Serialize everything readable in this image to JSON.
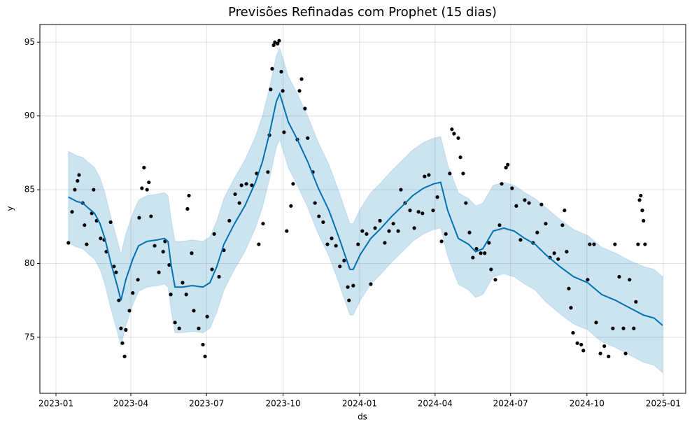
{
  "chart_data": {
    "type": "line",
    "title": "Previsões Refinadas com Prophet (15 dias)",
    "xlabel": "ds",
    "ylabel": "y",
    "grid": true,
    "xlim": [
      2022.947,
      2025.074
    ],
    "ylim": [
      71.2,
      96.2
    ],
    "xticks": [
      {
        "value": 2023.0,
        "label": "2023-01"
      },
      {
        "value": 2023.2466,
        "label": "2023-04"
      },
      {
        "value": 2023.4959,
        "label": "2023-07"
      },
      {
        "value": 2023.7479,
        "label": "2023-10"
      },
      {
        "value": 2024.0,
        "label": "2024-01"
      },
      {
        "value": 2024.2486,
        "label": "2024-04"
      },
      {
        "value": 2024.4973,
        "label": "2024-07"
      },
      {
        "value": 2024.7486,
        "label": "2024-10"
      },
      {
        "value": 2025.0,
        "label": "2025-01"
      }
    ],
    "yticks": [
      75,
      80,
      85,
      90,
      95
    ],
    "forecast": {
      "color": "#0072b2",
      "band_color": "#0072b2",
      "x": [
        2023.041,
        2023.069,
        2023.088,
        2023.104,
        2023.127,
        2023.145,
        2023.161,
        2023.18,
        2023.203,
        2023.214,
        2023.23,
        2023.253,
        2023.272,
        2023.3,
        2023.334,
        2023.357,
        2023.369,
        2023.38,
        2023.392,
        2023.415,
        2023.449,
        2023.484,
        2023.507,
        2023.53,
        2023.553,
        2023.588,
        2023.622,
        2023.657,
        2023.68,
        2023.703,
        2023.726,
        2023.737,
        2023.749,
        2023.765,
        2023.795,
        2023.829,
        2023.864,
        2023.899,
        2023.933,
        2023.968,
        2023.979,
        2024.002,
        2024.037,
        2024.071,
        2024.106,
        2024.141,
        2024.175,
        2024.21,
        2024.244,
        2024.267,
        2024.29,
        2024.325,
        2024.359,
        2024.382,
        2024.406,
        2024.44,
        2024.475,
        2024.509,
        2024.544,
        2024.578,
        2024.613,
        2024.659,
        2024.705,
        2024.751,
        2024.797,
        2024.843,
        2024.889,
        2024.935,
        2024.97,
        2024.998
      ],
      "values": [
        84.5,
        84.2,
        84.1,
        83.8,
        83.4,
        82.7,
        81.7,
        80.1,
        78.4,
        77.5,
        78.9,
        80.3,
        81.2,
        81.5,
        81.6,
        81.7,
        81.5,
        79.8,
        78.4,
        78.4,
        78.5,
        78.4,
        78.7,
        79.8,
        81.3,
        82.7,
        83.9,
        85.5,
        86.9,
        88.8,
        91.0,
        91.5,
        90.7,
        89.6,
        88.4,
        86.9,
        85.1,
        83.6,
        81.7,
        79.6,
        79.6,
        80.6,
        81.7,
        82.4,
        83.2,
        83.9,
        84.6,
        85.1,
        85.4,
        85.5,
        83.6,
        81.7,
        81.3,
        80.8,
        81.0,
        82.2,
        82.4,
        82.2,
        81.7,
        81.3,
        80.6,
        79.8,
        79.1,
        78.7,
        77.9,
        77.5,
        77.0,
        76.5,
        76.3,
        75.8
      ],
      "upper": [
        87.6,
        87.3,
        87.2,
        86.9,
        86.5,
        85.8,
        84.8,
        83.2,
        81.5,
        80.6,
        82.0,
        83.4,
        84.3,
        84.6,
        84.7,
        84.8,
        84.6,
        82.9,
        81.5,
        81.5,
        81.6,
        81.5,
        81.8,
        82.9,
        84.4,
        85.8,
        87.0,
        88.6,
        90.0,
        91.9,
        94.1,
        94.6,
        93.8,
        92.7,
        91.5,
        90.0,
        88.2,
        86.7,
        84.8,
        82.7,
        82.7,
        83.7,
        84.8,
        85.5,
        86.3,
        87.0,
        87.7,
        88.2,
        88.5,
        88.6,
        86.7,
        84.8,
        84.4,
        83.9,
        84.1,
        85.3,
        85.5,
        85.3,
        84.8,
        84.4,
        83.8,
        83.0,
        82.3,
        81.9,
        81.1,
        80.7,
        80.2,
        79.8,
        79.6,
        79.1
      ],
      "lower": [
        81.4,
        81.1,
        81.0,
        80.7,
        80.3,
        79.6,
        78.6,
        77.0,
        75.3,
        74.4,
        75.8,
        77.2,
        78.1,
        78.4,
        78.5,
        78.6,
        78.4,
        76.7,
        75.3,
        75.3,
        75.4,
        75.3,
        75.6,
        76.7,
        78.2,
        79.6,
        80.8,
        82.4,
        83.8,
        85.7,
        87.9,
        88.4,
        87.6,
        86.5,
        85.3,
        83.8,
        82.0,
        80.5,
        78.6,
        76.5,
        76.5,
        77.5,
        78.6,
        79.3,
        80.1,
        80.8,
        81.5,
        82.0,
        82.3,
        82.4,
        80.5,
        78.6,
        78.2,
        77.7,
        77.9,
        79.1,
        79.3,
        79.1,
        78.6,
        78.2,
        77.4,
        76.6,
        75.9,
        75.5,
        74.7,
        74.3,
        73.8,
        73.3,
        73.1,
        72.6
      ]
    },
    "observed": {
      "color": "#000000",
      "x": [
        2023.041,
        2023.053,
        2023.062,
        2023.071,
        2023.076,
        2023.088,
        2023.094,
        2023.101,
        2023.118,
        2023.124,
        2023.134,
        2023.147,
        2023.159,
        2023.166,
        2023.18,
        2023.191,
        2023.198,
        2023.207,
        2023.214,
        2023.219,
        2023.226,
        2023.23,
        2023.242,
        2023.253,
        2023.27,
        2023.274,
        2023.283,
        2023.29,
        2023.3,
        2023.306,
        2023.313,
        2023.325,
        2023.339,
        2023.353,
        2023.359,
        2023.373,
        2023.378,
        2023.392,
        2023.406,
        2023.417,
        2023.429,
        2023.433,
        2023.438,
        2023.447,
        2023.454,
        2023.47,
        2023.484,
        2023.491,
        2023.498,
        2023.514,
        2023.521,
        2023.537,
        2023.553,
        2023.571,
        2023.59,
        2023.604,
        2023.611,
        2023.627,
        2023.645,
        2023.661,
        2023.668,
        2023.682,
        2023.698,
        2023.703,
        2023.707,
        2023.712,
        2023.717,
        2023.721,
        2023.73,
        2023.735,
        2023.742,
        2023.747,
        2023.751,
        2023.76,
        2023.774,
        2023.781,
        2023.795,
        2023.802,
        2023.809,
        2023.82,
        2023.829,
        2023.846,
        2023.853,
        2023.866,
        2023.88,
        2023.894,
        2023.908,
        2023.922,
        2023.935,
        2023.949,
        2023.961,
        2023.965,
        2023.979,
        2023.995,
        2024.009,
        2024.023,
        2024.037,
        2024.051,
        2024.067,
        2024.083,
        2024.097,
        2024.111,
        2024.127,
        2024.136,
        2024.15,
        2024.166,
        2024.18,
        2024.194,
        2024.207,
        2024.214,
        2024.228,
        2024.242,
        2024.256,
        2024.27,
        2024.284,
        2024.297,
        2024.304,
        2024.311,
        2024.325,
        2024.332,
        2024.341,
        2024.35,
        2024.362,
        2024.373,
        2024.385,
        2024.399,
        2024.412,
        2024.426,
        2024.433,
        2024.447,
        2024.461,
        2024.468,
        2024.482,
        2024.488,
        2024.502,
        2024.516,
        2024.53,
        2024.544,
        2024.558,
        2024.571,
        2024.585,
        2024.599,
        2024.613,
        2024.627,
        2024.641,
        2024.654,
        2024.668,
        2024.675,
        2024.682,
        2024.689,
        2024.696,
        2024.703,
        2024.717,
        2024.73,
        2024.737,
        2024.751,
        2024.758,
        2024.772,
        2024.779,
        2024.793,
        2024.806,
        2024.82,
        2024.834,
        2024.841,
        2024.855,
        2024.869,
        2024.876,
        2024.889,
        2024.903,
        2024.91,
        2024.917,
        2024.922,
        2024.926,
        2024.931,
        2024.935,
        2024.94
      ],
      "values": [
        81.4,
        83.5,
        85.0,
        85.6,
        86.0,
        84.1,
        82.6,
        81.3,
        83.4,
        85.0,
        82.9,
        81.7,
        81.6,
        80.8,
        82.8,
        79.8,
        79.4,
        77.5,
        75.6,
        74.6,
        73.7,
        75.5,
        76.8,
        78.0,
        78.9,
        83.1,
        85.1,
        86.5,
        85.0,
        85.5,
        83.2,
        81.2,
        79.4,
        80.8,
        81.5,
        79.9,
        77.9,
        76.0,
        75.6,
        78.7,
        77.9,
        83.7,
        84.6,
        80.7,
        76.8,
        75.6,
        74.5,
        73.7,
        76.4,
        79.6,
        82.0,
        79.1,
        80.9,
        82.9,
        84.7,
        84.1,
        85.3,
        85.4,
        85.3,
        86.1,
        81.3,
        82.7,
        86.2,
        88.7,
        91.8,
        93.2,
        94.8,
        95.0,
        94.9,
        95.1,
        93.0,
        91.7,
        88.9,
        82.2,
        83.9,
        85.4,
        88.4,
        91.7,
        92.5,
        90.5,
        88.5,
        86.2,
        84.1,
        83.2,
        82.8,
        81.3,
        81.7,
        81.2,
        79.8,
        80.2,
        78.4,
        77.5,
        78.5,
        81.3,
        82.2,
        82.0,
        78.6,
        82.4,
        82.9,
        81.4,
        82.2,
        82.7,
        82.2,
        85.0,
        84.1,
        83.6,
        82.4,
        83.5,
        83.4,
        85.9,
        86.0,
        83.6,
        84.5,
        81.5,
        82.0,
        86.1,
        89.1,
        88.8,
        88.5,
        87.2,
        86.1,
        84.1,
        82.1,
        80.4,
        81.0,
        80.7,
        80.7,
        81.4,
        79.6,
        78.9,
        82.6,
        85.4,
        86.5,
        86.7,
        85.1,
        83.9,
        81.6,
        84.3,
        84.1,
        81.4,
        82.1,
        84.0,
        82.7,
        80.4,
        80.7,
        80.3,
        82.6,
        83.6,
        80.8,
        78.3,
        77.0,
        75.3,
        74.6,
        74.5,
        74.1,
        78.9,
        81.3,
        81.3,
        76.0,
        73.9,
        74.4,
        73.7,
        75.6,
        81.3,
        79.1,
        75.6,
        73.9,
        78.9,
        75.6,
        77.4,
        81.3,
        84.3,
        84.6,
        83.6,
        82.9,
        81.3
      ]
    }
  }
}
